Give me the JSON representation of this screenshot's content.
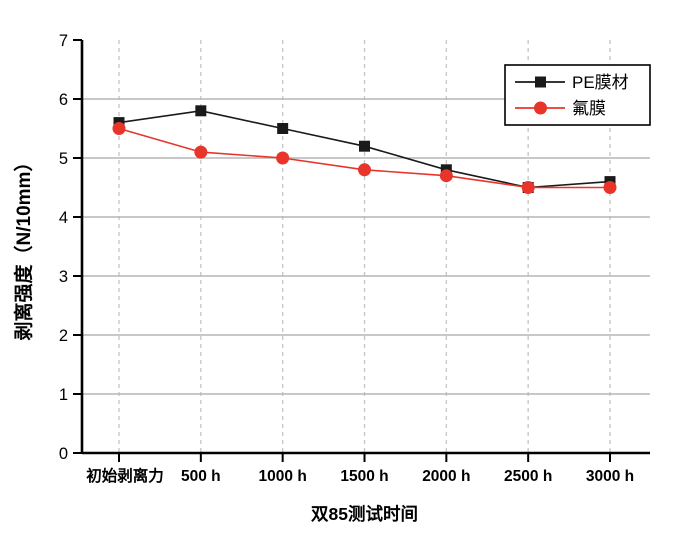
{
  "chart_data": {
    "type": "line",
    "title": "",
    "xlabel": "双85测试时间",
    "ylabel": "剥离强度（N/10mm）",
    "categories": [
      "初始剥离力",
      "500 h",
      "1000 h",
      "1500 h",
      "2000 h",
      "2500 h",
      "3000 h"
    ],
    "series": [
      {
        "name": "PE膜材",
        "marker": "square",
        "color": "#1a1a1a",
        "values": [
          5.6,
          5.8,
          5.5,
          5.2,
          4.8,
          4.5,
          4.6
        ]
      },
      {
        "name": "氟膜",
        "marker": "circle",
        "color": "#e8342a",
        "values": [
          5.5,
          5.1,
          5.0,
          4.8,
          4.7,
          4.5,
          4.5
        ]
      }
    ],
    "ylim": [
      0,
      7
    ],
    "yticks": [
      0,
      1,
      2,
      3,
      4,
      5,
      6,
      7
    ],
    "grid": {
      "horizontal": "solid",
      "vertical": "dashed",
      "h_lines_at": [
        1,
        2,
        3,
        4,
        5,
        6
      ]
    },
    "legend_position": "top-right",
    "colors": {
      "axis": "#000000",
      "grid_horizontal": "#b5b5b5",
      "grid_vertical": "#c8c8c8",
      "legend_border": "#000000",
      "legend_background": "#ffffff"
    }
  }
}
